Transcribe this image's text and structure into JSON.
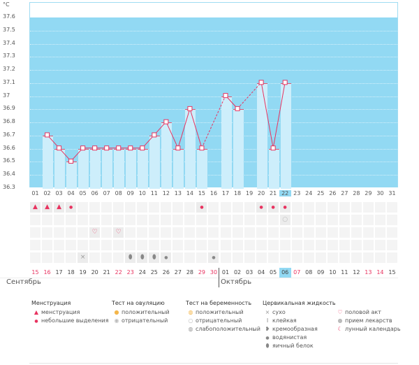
{
  "chart_data": {
    "type": "bar",
    "ylabel": "°C",
    "ylim": [
      36.3,
      37.6
    ],
    "yticks": [
      "37.6",
      "37.5",
      "37.4",
      "37.3",
      "37.2",
      "37.1",
      "37",
      "36.9",
      "36.8",
      "36.7",
      "36.6",
      "36.5",
      "36.4",
      "36.3"
    ],
    "categories": [
      "01",
      "02",
      "03",
      "04",
      "05",
      "06",
      "07",
      "08",
      "09",
      "10",
      "11",
      "12",
      "13",
      "14",
      "15",
      "16",
      "17",
      "18",
      "19",
      "20",
      "21",
      "22",
      "23",
      "24",
      "25",
      "26",
      "27",
      "28",
      "29",
      "30",
      "31"
    ],
    "values": [
      null,
      36.7,
      36.6,
      36.5,
      36.6,
      36.6,
      36.6,
      36.6,
      36.6,
      36.6,
      36.7,
      36.8,
      36.6,
      36.9,
      36.6,
      null,
      37.0,
      36.9,
      null,
      37.1,
      36.6,
      37.1,
      null,
      null,
      null,
      null,
      null,
      null,
      null,
      null,
      null
    ],
    "highlight_day": "22",
    "line_color": "#e8325f",
    "bg_color": "#92d9f3",
    "bar_color": "#cdeefb"
  },
  "icon_rows": [
    {
      "name": "menstruation",
      "icons": {
        "1": "menstruation-icon",
        "2": "menstruation-icon",
        "3": "menstruation-icon",
        "4": "spotting-icon",
        "15": "spotting-icon",
        "20": "spotting-icon",
        "21": "spotting-icon",
        "22": "spotting-icon"
      }
    },
    {
      "name": "pregnancy-test",
      "icons": {
        "22": "pregnancy-negative-icon"
      }
    },
    {
      "name": "intercourse",
      "icons": {
        "6": "heart-icon",
        "8": "heart-icon"
      }
    },
    {
      "name": "ovulation-test",
      "icons": {}
    },
    {
      "name": "cervical-fluid",
      "icons": {
        "5": "dry-icon",
        "9": "egg-white-icon",
        "10": "egg-white-icon",
        "11": "egg-white-icon",
        "12": "watery-icon",
        "16": "watery-icon"
      }
    }
  ],
  "dates": [
    {
      "d": "15",
      "red": true
    },
    {
      "d": "16",
      "red": true
    },
    {
      "d": "17"
    },
    {
      "d": "18"
    },
    {
      "d": "19"
    },
    {
      "d": "20"
    },
    {
      "d": "21"
    },
    {
      "d": "22",
      "red": true
    },
    {
      "d": "23",
      "red": true
    },
    {
      "d": "24"
    },
    {
      "d": "25"
    },
    {
      "d": "26"
    },
    {
      "d": "27"
    },
    {
      "d": "28"
    },
    {
      "d": "29",
      "red": true
    },
    {
      "d": "30",
      "red": true
    },
    {
      "d": "01"
    },
    {
      "d": "02"
    },
    {
      "d": "03"
    },
    {
      "d": "04"
    },
    {
      "d": "05"
    },
    {
      "d": "06",
      "today": true
    },
    {
      "d": "07",
      "red": true
    },
    {
      "d": "08"
    },
    {
      "d": "09"
    },
    {
      "d": "10"
    },
    {
      "d": "11"
    },
    {
      "d": "12"
    },
    {
      "d": "13",
      "red": true
    },
    {
      "d": "14",
      "red": true
    },
    {
      "d": "15"
    }
  ],
  "months": {
    "first": "Сентябрь",
    "second": "Октябрь"
  },
  "legend": {
    "menstruation": {
      "title": "Менструация",
      "items": [
        "менструация",
        "небольшие выделения"
      ]
    },
    "ovulation": {
      "title": "Тест на овуляцию",
      "items": [
        "положительный",
        "отрицательный"
      ]
    },
    "pregnancy": {
      "title": "Тест на беременность",
      "items": [
        "положительный",
        "отрицательный",
        "слабоположительный"
      ]
    },
    "cervical": {
      "title": "Цервикальная жидкость",
      "items": [
        "сухо",
        "клейкая",
        "кремообразная",
        "водянистая",
        "яичный белок"
      ]
    },
    "other": {
      "items": [
        "половой акт",
        "прием лекарств",
        "лунный календарь"
      ]
    }
  }
}
